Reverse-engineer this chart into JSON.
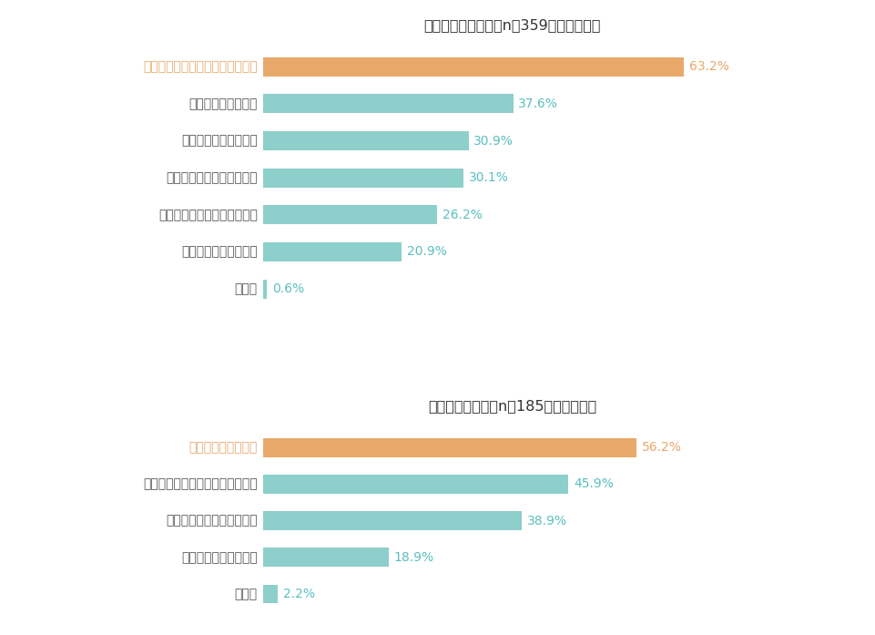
{
  "business_title": "ビジネスパーソン（n＝359・複数回答）",
  "business_categories": [
    "自身のキャリアビジョンの明確化",
    "自身での資金の準備",
    "勤務先からのサポート",
    "国や自治体からのサポート",
    "上司や同僚の理解・サポート",
    "家族の理解・サポート",
    "その他"
  ],
  "business_values": [
    63.2,
    37.6,
    30.9,
    30.1,
    26.2,
    20.9,
    0.6
  ],
  "business_highlight": [
    true,
    false,
    false,
    false,
    false,
    false,
    false
  ],
  "freelance_title": "フリーランサー（n＝185・複数回答）",
  "freelance_categories": [
    "自身での資金の準備",
    "自身のキャリアビジョンの明確化",
    "国や自治体からのサポート",
    "家族の理解・サポート",
    "その他"
  ],
  "freelance_values": [
    56.2,
    45.9,
    38.9,
    18.9,
    2.2
  ],
  "freelance_highlight": [
    true,
    false,
    false,
    false,
    false
  ],
  "color_highlight": "#E8A96A",
  "color_normal": "#8DCFCB",
  "color_label_highlight": "#E8A96A",
  "color_label_normal": "#555555",
  "color_value_highlight": "#E8A96A",
  "color_value_normal": "#5BBFBE",
  "background_color": "#FFFFFF",
  "title_fontsize": 11.5,
  "label_fontsize": 10,
  "value_fontsize": 10,
  "bar_height": 0.52
}
